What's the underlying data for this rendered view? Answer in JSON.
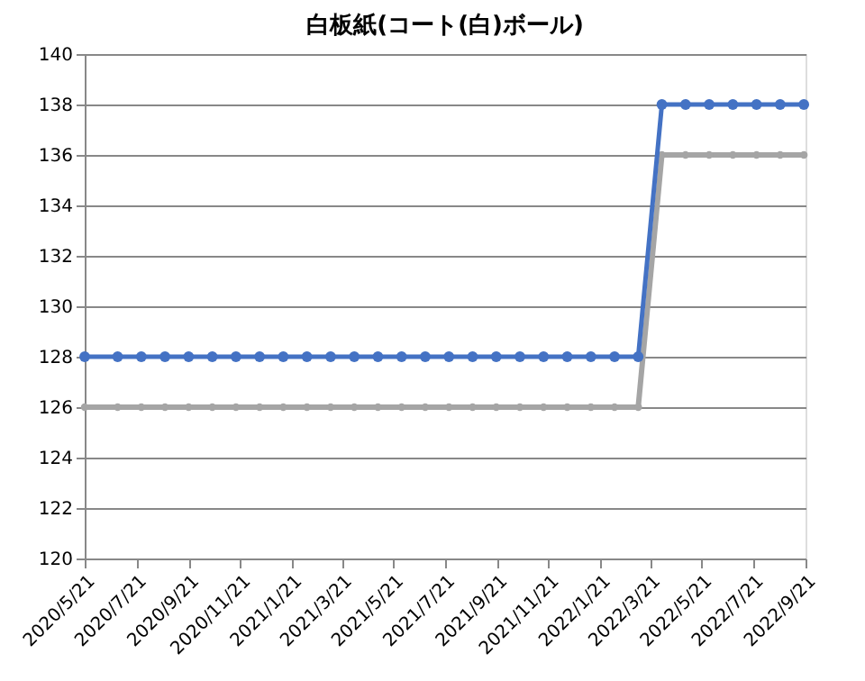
{
  "chart_data": {
    "type": "line",
    "title": "白板紙(コート(白)ボール)",
    "x": [
      "2020-05-21",
      "2020-06-29",
      "2020-07-27",
      "2020-08-24",
      "2020-09-21",
      "2020-10-19",
      "2020-11-16",
      "2020-12-14",
      "2021-01-11",
      "2021-02-08",
      "2021-03-08",
      "2021-04-05",
      "2021-05-03",
      "2021-05-31",
      "2021-06-28",
      "2021-07-26",
      "2021-08-23",
      "2021-09-20",
      "2021-10-18",
      "2021-11-15",
      "2021-12-13",
      "2022-01-10",
      "2022-02-07",
      "2022-03-07",
      "2022-04-04",
      "2022-05-02",
      "2022-05-30",
      "2022-06-27",
      "2022-07-25",
      "2022-08-22",
      "2022-09-19"
    ],
    "series": [
      {
        "color": "#a5a5a5",
        "values": [
          126,
          126,
          126,
          126,
          126,
          126,
          126,
          126,
          126,
          126,
          126,
          126,
          126,
          126,
          126,
          126,
          126,
          126,
          126,
          126,
          126,
          126,
          126,
          126,
          136,
          136,
          136,
          136,
          136,
          136,
          136
        ]
      },
      {
        "color": "#4472c4",
        "values": [
          128,
          128,
          128,
          128,
          128,
          128,
          128,
          128,
          128,
          128,
          128,
          128,
          128,
          128,
          128,
          128,
          128,
          128,
          128,
          128,
          128,
          128,
          128,
          128,
          138,
          138,
          138,
          138,
          138,
          138,
          138
        ]
      }
    ],
    "xlim": [
      "2020-05-21",
      "2022-09-21"
    ],
    "xticks": [
      {
        "value": "2020-05-21",
        "label": "2020/5/21"
      },
      {
        "value": "2020-07-21",
        "label": "2020/7/21"
      },
      {
        "value": "2020-09-21",
        "label": "2020/9/21"
      },
      {
        "value": "2020-11-21",
        "label": "2020/11/21"
      },
      {
        "value": "2021-01-21",
        "label": "2021/1/21"
      },
      {
        "value": "2021-03-21",
        "label": "2021/3/21"
      },
      {
        "value": "2021-05-21",
        "label": "2021/5/21"
      },
      {
        "value": "2021-07-21",
        "label": "2021/7/21"
      },
      {
        "value": "2021-09-21",
        "label": "2021/9/21"
      },
      {
        "value": "2021-11-21",
        "label": "2021/11/21"
      },
      {
        "value": "2022-01-21",
        "label": "2022/1/21"
      },
      {
        "value": "2022-03-21",
        "label": "2022/3/21"
      },
      {
        "value": "2022-05-21",
        "label": "2022/5/21"
      },
      {
        "value": "2022-07-21",
        "label": "2022/7/21"
      },
      {
        "value": "2022-09-21",
        "label": "2022/9/21"
      }
    ],
    "ylim": [
      120,
      140
    ],
    "yticks": [
      120,
      122,
      124,
      126,
      128,
      130,
      132,
      134,
      136,
      138,
      140
    ],
    "grid": "y",
    "marker": "circle"
  }
}
